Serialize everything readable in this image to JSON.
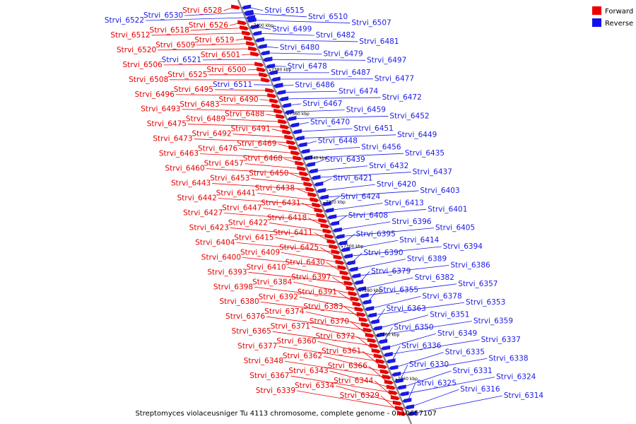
{
  "caption": "Streptomyces violaceusniger Tu 4113 chromosome, complete genome - 0..10657107",
  "legend": [
    {
      "label": "Forward",
      "color": "#ee0000"
    },
    {
      "label": "Reverse",
      "color": "#1111ee"
    }
  ],
  "colors": {
    "forward": "#e60000",
    "reverse": "#1a1ae6",
    "axis": "#8a8a8a"
  },
  "ticks": [
    "7400 kbp",
    "7380 kbp",
    "7360 kbp",
    "7340 kbp",
    "7320 kbp",
    "7300 kbp",
    "7280 kbp",
    "7260 kbp",
    "7240 kbp"
  ],
  "genes_left": [
    {
      "name": "Strvi_6528",
      "strand": "Forward"
    },
    {
      "name": "Strvi_6530",
      "strand": "Reverse"
    },
    {
      "name": "Strvi_6522",
      "strand": "Reverse"
    },
    {
      "name": "Strvi_6526",
      "strand": "Forward"
    },
    {
      "name": "Strvi_6518",
      "strand": "Forward"
    },
    {
      "name": "Strvi_6512",
      "strand": "Forward"
    },
    {
      "name": "Strvi_6519",
      "strand": "Forward"
    },
    {
      "name": "Strvi_6509",
      "strand": "Forward"
    },
    {
      "name": "Strvi_6520",
      "strand": "Forward"
    },
    {
      "name": "Strvi_6501",
      "strand": "Forward"
    },
    {
      "name": "Strvi_6521",
      "strand": "Reverse"
    },
    {
      "name": "Strvi_6506",
      "strand": "Forward"
    },
    {
      "name": "Strvi_6500",
      "strand": "Forward"
    },
    {
      "name": "Strvi_6525",
      "strand": "Forward"
    },
    {
      "name": "Strvi_6508",
      "strand": "Forward"
    },
    {
      "name": "Strvi_6511",
      "strand": "Reverse"
    },
    {
      "name": "Strvi_6495",
      "strand": "Forward"
    },
    {
      "name": "Strvi_6496",
      "strand": "Forward"
    },
    {
      "name": "Strvi_6490",
      "strand": "Forward"
    },
    {
      "name": "Strvi_6483",
      "strand": "Forward"
    },
    {
      "name": "Strvi_6493",
      "strand": "Forward"
    },
    {
      "name": "Strvi_6488",
      "strand": "Forward"
    },
    {
      "name": "Strvi_6489",
      "strand": "Forward"
    },
    {
      "name": "Strvi_6475",
      "strand": "Forward"
    },
    {
      "name": "Strvi_6491",
      "strand": "Forward"
    },
    {
      "name": "Strvi_6492",
      "strand": "Forward"
    },
    {
      "name": "Strvi_6473",
      "strand": "Forward"
    },
    {
      "name": "Strvi_6469",
      "strand": "Forward"
    },
    {
      "name": "Strvi_6476",
      "strand": "Forward"
    },
    {
      "name": "Strvi_6463",
      "strand": "Forward"
    },
    {
      "name": "Strvi_6468",
      "strand": "Forward"
    },
    {
      "name": "Strvi_6457",
      "strand": "Forward"
    },
    {
      "name": "Strvi_6460",
      "strand": "Forward"
    },
    {
      "name": "Strvi_6450",
      "strand": "Forward"
    },
    {
      "name": "Strvi_6453",
      "strand": "Forward"
    },
    {
      "name": "Strvi_6443",
      "strand": "Forward"
    },
    {
      "name": "Strvi_6438",
      "strand": "Forward"
    },
    {
      "name": "Strvi_6441",
      "strand": "Forward"
    },
    {
      "name": "Strvi_6442",
      "strand": "Forward"
    },
    {
      "name": "Strvi_6431",
      "strand": "Forward"
    },
    {
      "name": "Strvi_6447",
      "strand": "Forward"
    },
    {
      "name": "Strvi_6427",
      "strand": "Forward"
    },
    {
      "name": "Strvi_6418",
      "strand": "Forward"
    },
    {
      "name": "Strvi_6422",
      "strand": "Forward"
    },
    {
      "name": "Strvi_6423",
      "strand": "Forward"
    },
    {
      "name": "Strvi_6411",
      "strand": "Forward"
    },
    {
      "name": "Strvi_6415",
      "strand": "Forward"
    },
    {
      "name": "Strvi_6404",
      "strand": "Forward"
    },
    {
      "name": "Strvi_6425",
      "strand": "Forward"
    },
    {
      "name": "Strvi_6409",
      "strand": "Forward"
    },
    {
      "name": "Strvi_6400",
      "strand": "Forward"
    },
    {
      "name": "Strvi_6430",
      "strand": "Forward"
    },
    {
      "name": "Strvi_6410",
      "strand": "Forward"
    },
    {
      "name": "Strvi_6393",
      "strand": "Forward"
    },
    {
      "name": "Strvi_6397",
      "strand": "Forward"
    },
    {
      "name": "Strvi_6384",
      "strand": "Forward"
    },
    {
      "name": "Strvi_6398",
      "strand": "Forward"
    },
    {
      "name": "Strvi_6391",
      "strand": "Forward"
    },
    {
      "name": "Strvi_6392",
      "strand": "Forward"
    },
    {
      "name": "Strvi_6380",
      "strand": "Forward"
    },
    {
      "name": "Strvi_6383",
      "strand": "Forward"
    },
    {
      "name": "Strvi_6374",
      "strand": "Forward"
    },
    {
      "name": "Strvi_6376",
      "strand": "Forward"
    },
    {
      "name": "Strvi_6370",
      "strand": "Forward"
    },
    {
      "name": "Strvi_6371",
      "strand": "Forward"
    },
    {
      "name": "Strvi_6365",
      "strand": "Forward"
    },
    {
      "name": "Strvi_6372",
      "strand": "Forward"
    },
    {
      "name": "Strvi_6360",
      "strand": "Forward"
    },
    {
      "name": "Strvi_6377",
      "strand": "Forward"
    },
    {
      "name": "Strvi_6361",
      "strand": "Forward"
    },
    {
      "name": "Strvi_6362",
      "strand": "Forward"
    },
    {
      "name": "Strvi_6348",
      "strand": "Forward"
    },
    {
      "name": "Strvi_6366",
      "strand": "Forward"
    },
    {
      "name": "Strvi_6343",
      "strand": "Forward"
    },
    {
      "name": "Strvi_6367",
      "strand": "Forward"
    },
    {
      "name": "Strvi_6344",
      "strand": "Forward"
    },
    {
      "name": "Strvi_6334",
      "strand": "Forward"
    },
    {
      "name": "Strvi_6339",
      "strand": "Forward"
    },
    {
      "name": "Strvi_6329",
      "strand": "Forward"
    }
  ],
  "genes_right": [
    {
      "name": "Strvi_6515",
      "strand": "Reverse"
    },
    {
      "name": "Strvi_6510",
      "strand": "Reverse"
    },
    {
      "name": "Strvi_6507",
      "strand": "Reverse"
    },
    {
      "name": "Strvi_6499",
      "strand": "Reverse"
    },
    {
      "name": "Strvi_6482",
      "strand": "Reverse"
    },
    {
      "name": "Strvi_6481",
      "strand": "Reverse"
    },
    {
      "name": "Strvi_6480",
      "strand": "Reverse"
    },
    {
      "name": "Strvi_6479",
      "strand": "Reverse"
    },
    {
      "name": "Strvi_6497",
      "strand": "Reverse"
    },
    {
      "name": "Strvi_6478",
      "strand": "Reverse"
    },
    {
      "name": "Strvi_6487",
      "strand": "Reverse"
    },
    {
      "name": "Strvi_6477",
      "strand": "Reverse"
    },
    {
      "name": "Strvi_6486",
      "strand": "Reverse"
    },
    {
      "name": "Strvi_6474",
      "strand": "Reverse"
    },
    {
      "name": "Strvi_6472",
      "strand": "Reverse"
    },
    {
      "name": "Strvi_6467",
      "strand": "Reverse"
    },
    {
      "name": "Strvi_6459",
      "strand": "Reverse"
    },
    {
      "name": "Strvi_6452",
      "strand": "Reverse"
    },
    {
      "name": "Strvi_6470",
      "strand": "Reverse"
    },
    {
      "name": "Strvi_6451",
      "strand": "Reverse"
    },
    {
      "name": "Strvi_6449",
      "strand": "Reverse"
    },
    {
      "name": "Strvi_6448",
      "strand": "Reverse"
    },
    {
      "name": "Strvi_6456",
      "strand": "Reverse"
    },
    {
      "name": "Strvi_6435",
      "strand": "Reverse"
    },
    {
      "name": "Strvi_6439",
      "strand": "Reverse"
    },
    {
      "name": "Strvi_6432",
      "strand": "Reverse"
    },
    {
      "name": "Strvi_6437",
      "strand": "Reverse"
    },
    {
      "name": "Strvi_6421",
      "strand": "Reverse"
    },
    {
      "name": "Strvi_6420",
      "strand": "Reverse"
    },
    {
      "name": "Strvi_6403",
      "strand": "Reverse"
    },
    {
      "name": "Strvi_6424",
      "strand": "Reverse"
    },
    {
      "name": "Strvi_6413",
      "strand": "Reverse"
    },
    {
      "name": "Strvi_6401",
      "strand": "Reverse"
    },
    {
      "name": "Strvi_6408",
      "strand": "Reverse"
    },
    {
      "name": "Strvi_6396",
      "strand": "Reverse"
    },
    {
      "name": "Strvi_6405",
      "strand": "Reverse"
    },
    {
      "name": "Strvi_6395",
      "strand": "Reverse"
    },
    {
      "name": "Strvi_6414",
      "strand": "Reverse"
    },
    {
      "name": "Strvi_6394",
      "strand": "Reverse"
    },
    {
      "name": "Strvi_6390",
      "strand": "Reverse"
    },
    {
      "name": "Strvi_6389",
      "strand": "Reverse"
    },
    {
      "name": "Strvi_6386",
      "strand": "Reverse"
    },
    {
      "name": "Strvi_6379",
      "strand": "Reverse"
    },
    {
      "name": "Strvi_6382",
      "strand": "Reverse"
    },
    {
      "name": "Strvi_6357",
      "strand": "Reverse"
    },
    {
      "name": "Strvi_6355",
      "strand": "Reverse"
    },
    {
      "name": "Strvi_6378",
      "strand": "Reverse"
    },
    {
      "name": "Strvi_6353",
      "strand": "Reverse"
    },
    {
      "name": "Strvi_6363",
      "strand": "Reverse"
    },
    {
      "name": "Strvi_6351",
      "strand": "Reverse"
    },
    {
      "name": "Strvi_6359",
      "strand": "Reverse"
    },
    {
      "name": "Strvi_6350",
      "strand": "Reverse"
    },
    {
      "name": "Strvi_6349",
      "strand": "Reverse"
    },
    {
      "name": "Strvi_6337",
      "strand": "Reverse"
    },
    {
      "name": "Strvi_6336",
      "strand": "Reverse"
    },
    {
      "name": "Strvi_6335",
      "strand": "Reverse"
    },
    {
      "name": "Strvi_6338",
      "strand": "Reverse"
    },
    {
      "name": "Strvi_6330",
      "strand": "Reverse"
    },
    {
      "name": "Strvi_6331",
      "strand": "Reverse"
    },
    {
      "name": "Strvi_6324",
      "strand": "Reverse"
    },
    {
      "name": "Strvi_6325",
      "strand": "Reverse"
    },
    {
      "name": "Strvi_6316",
      "strand": "Reverse"
    },
    {
      "name": "Strvi_6314",
      "strand": "Reverse"
    }
  ]
}
